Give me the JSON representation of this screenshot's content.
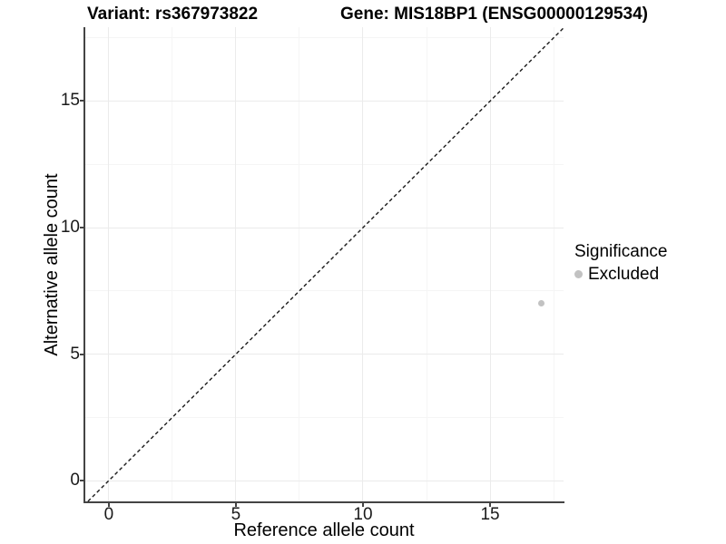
{
  "chart_data": {
    "type": "scatter",
    "title_left": "Variant: rs367973822",
    "title_right": "Gene: MIS18BP1 (ENSG00000129534)",
    "xlabel": "Reference allele count",
    "ylabel": "Alternative allele count",
    "xlim": [
      -0.96,
      17.89
    ],
    "ylim": [
      -0.82,
      17.92
    ],
    "x_ticks": [
      0,
      5,
      10,
      15
    ],
    "y_ticks": [
      0,
      5,
      10,
      15
    ],
    "x_minor_ticks": [
      2.5,
      7.5,
      12.5,
      17.5
    ],
    "y_minor_ticks": [
      2.5,
      7.5,
      12.5,
      17.5
    ],
    "grid": true,
    "points": [
      {
        "x": 17,
        "y": 7,
        "significance": "Excluded"
      }
    ],
    "identity_line": {
      "style": "dashed",
      "slope": 1,
      "intercept": 0
    },
    "legend": {
      "title": "Significance",
      "position": "right",
      "items": [
        {
          "label": "Excluded",
          "color": "#c2c2c2"
        }
      ]
    },
    "colors": {
      "grid_major": "#ebebeb",
      "grid_minor": "#f5f5f5",
      "axis_line": "#444444",
      "dash_line": "#1a1a1a",
      "text": "#000000"
    }
  }
}
